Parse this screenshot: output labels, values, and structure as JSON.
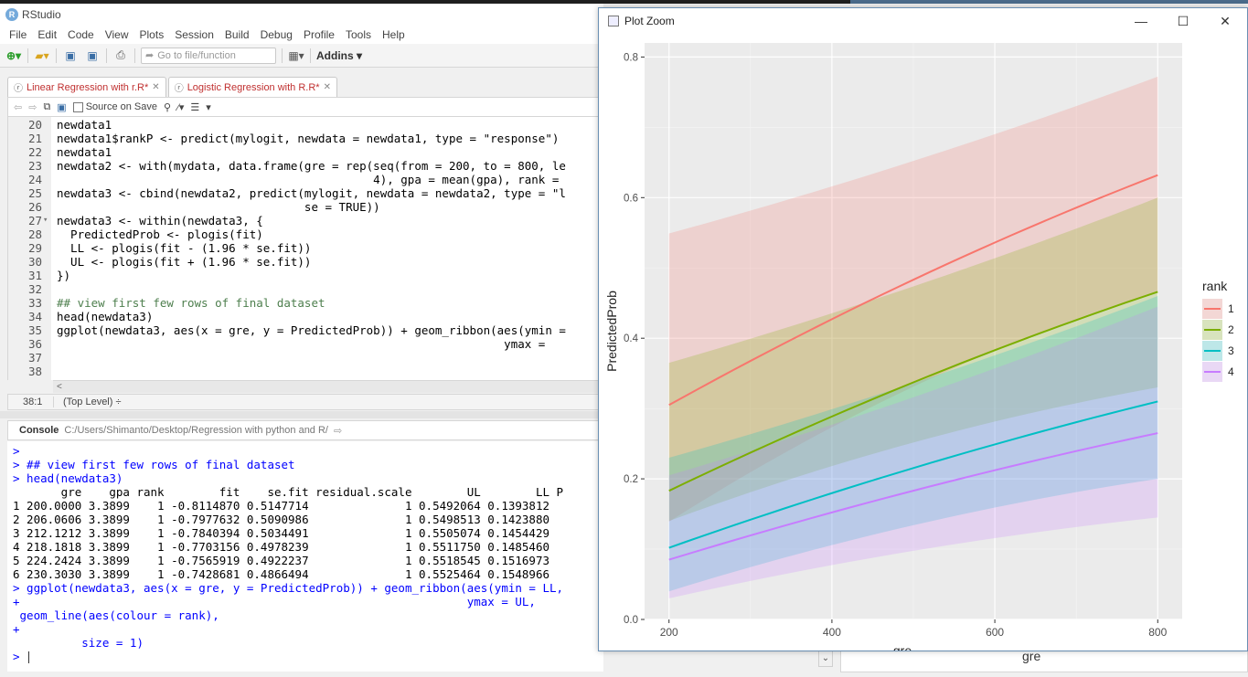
{
  "rstudio": {
    "title": "RStudio",
    "menus": [
      "File",
      "Edit",
      "Code",
      "View",
      "Plots",
      "Session",
      "Build",
      "Debug",
      "Profile",
      "Tools",
      "Help"
    ],
    "toolbar": {
      "goto_placeholder": "Go to file/function",
      "addins_label": "Addins"
    },
    "editor": {
      "tabs": [
        {
          "label": "Linear Regression with r.R*",
          "active": false
        },
        {
          "label": "Logistic Regression with R.R*",
          "active": true
        }
      ],
      "source_on_save": "Source on Save",
      "lines": [
        {
          "n": "20",
          "code": "newdata1",
          "fold": ""
        },
        {
          "n": "21",
          "code": "newdata1$rankP <- predict(mylogit, newdata = newdata1, type = \"response\")",
          "fold": ""
        },
        {
          "n": "22",
          "code": "newdata1",
          "fold": ""
        },
        {
          "n": "23",
          "code": "newdata2 <- with(mydata, data.frame(gre = rep(seq(from = 200, to = 800, le",
          "fold": ""
        },
        {
          "n": "24",
          "code": "                                              4), gpa = mean(gpa), rank =",
          "fold": ""
        },
        {
          "n": "25",
          "code": "newdata3 <- cbind(newdata2, predict(mylogit, newdata = newdata2, type = \"l",
          "fold": ""
        },
        {
          "n": "26",
          "code": "                                    se = TRUE))",
          "fold": ""
        },
        {
          "n": "27",
          "code": "newdata3 <- within(newdata3, {",
          "fold": "▾"
        },
        {
          "n": "28",
          "code": "  PredictedProb <- plogis(fit)",
          "fold": ""
        },
        {
          "n": "29",
          "code": "  LL <- plogis(fit - (1.96 * se.fit))",
          "fold": ""
        },
        {
          "n": "30",
          "code": "  UL <- plogis(fit + (1.96 * se.fit))",
          "fold": ""
        },
        {
          "n": "31",
          "code": "})",
          "fold": ""
        },
        {
          "n": "32",
          "code": "",
          "fold": ""
        },
        {
          "n": "33",
          "code": "## view first few rows of final dataset",
          "fold": ""
        },
        {
          "n": "34",
          "code": "head(newdata3)",
          "fold": ""
        },
        {
          "n": "35",
          "code": "ggplot(newdata3, aes(x = gre, y = PredictedProb)) + geom_ribbon(aes(ymin =",
          "fold": ""
        },
        {
          "n": "36",
          "code": "                                                                 ymax =",
          "fold": ""
        },
        {
          "n": "37",
          "code": "",
          "fold": ""
        },
        {
          "n": "38",
          "code": "",
          "fold": ""
        }
      ],
      "status_position": "38:1",
      "status_level": "(Top Level) ÷"
    },
    "console": {
      "title": "Console",
      "path": "C:/Users/Shimanto/Desktop/Regression with python and R/",
      "lines": [
        {
          "t": ">",
          "kind": "in"
        },
        {
          "t": "> ## view first few rows of final dataset",
          "kind": "in"
        },
        {
          "t": "> head(newdata3)",
          "kind": "in"
        },
        {
          "t": "       gre    gpa rank        fit    se.fit residual.scale        UL        LL P",
          "kind": "out"
        },
        {
          "t": "1 200.0000 3.3899    1 -0.8114870 0.5147714              1 0.5492064 0.1393812",
          "kind": "out"
        },
        {
          "t": "2 206.0606 3.3899    1 -0.7977632 0.5090986              1 0.5498513 0.1423880",
          "kind": "out"
        },
        {
          "t": "3 212.1212 3.3899    1 -0.7840394 0.5034491              1 0.5505074 0.1454429",
          "kind": "out"
        },
        {
          "t": "4 218.1818 3.3899    1 -0.7703156 0.4978239              1 0.5511750 0.1485460",
          "kind": "out"
        },
        {
          "t": "5 224.2424 3.3899    1 -0.7565919 0.4922237              1 0.5518545 0.1516973",
          "kind": "out"
        },
        {
          "t": "6 230.3030 3.3899    1 -0.7428681 0.4866494              1 0.5525464 0.1548966",
          "kind": "out"
        },
        {
          "t": "> ggplot(newdata3, aes(x = gre, y = PredictedProb)) + geom_ribbon(aes(ymin = LL,",
          "kind": "in"
        },
        {
          "t": "+                                                                 ymax = UL,",
          "kind": "in"
        },
        {
          "t": " geom_line(aes(colour = rank),",
          "kind": "in"
        },
        {
          "t": "+",
          "kind": "in"
        },
        {
          "t": "          size = 1)",
          "kind": "in"
        },
        {
          "t": "> ",
          "kind": "in"
        }
      ]
    },
    "background_axis_label": "gre"
  },
  "plot_zoom": {
    "title": "Plot Zoom",
    "controls": {
      "minimize": "—",
      "maximize": "☐",
      "close": "✕"
    }
  },
  "chart_data": {
    "type": "line",
    "title": "",
    "xlabel": "gre",
    "ylabel": "PredictedProb",
    "xlim": [
      170,
      830
    ],
    "ylim": [
      -0.0,
      0.82
    ],
    "x_ticks": [
      200,
      400,
      600,
      800
    ],
    "y_ticks": [
      0.0,
      0.2,
      0.4,
      0.6,
      0.8
    ],
    "y_tick_labels": [
      "0.0",
      "0.2",
      "0.4",
      "0.6",
      "0.8"
    ],
    "legend_title": "rank",
    "legend_position": "right",
    "grid": true,
    "x": [
      200,
      800
    ],
    "series": [
      {
        "name": "1",
        "color": "#F8766D",
        "line": [
          0.305,
          0.632
        ],
        "ll": [
          0.139,
          0.466
        ],
        "ul": [
          0.549,
          0.772
        ]
      },
      {
        "name": "2",
        "color": "#7CAE00",
        "line": [
          0.183,
          0.466
        ],
        "ll": [
          0.14,
          0.33
        ],
        "ul": [
          0.365,
          0.6
        ]
      },
      {
        "name": "3",
        "color": "#00BFC4",
        "line": [
          0.102,
          0.31
        ],
        "ll": [
          0.04,
          0.2
        ],
        "ul": [
          0.23,
          0.46
        ]
      },
      {
        "name": "4",
        "color": "#C77CFF",
        "line": [
          0.085,
          0.265
        ],
        "ll": [
          0.03,
          0.145
        ],
        "ul": [
          0.205,
          0.445
        ]
      }
    ]
  }
}
